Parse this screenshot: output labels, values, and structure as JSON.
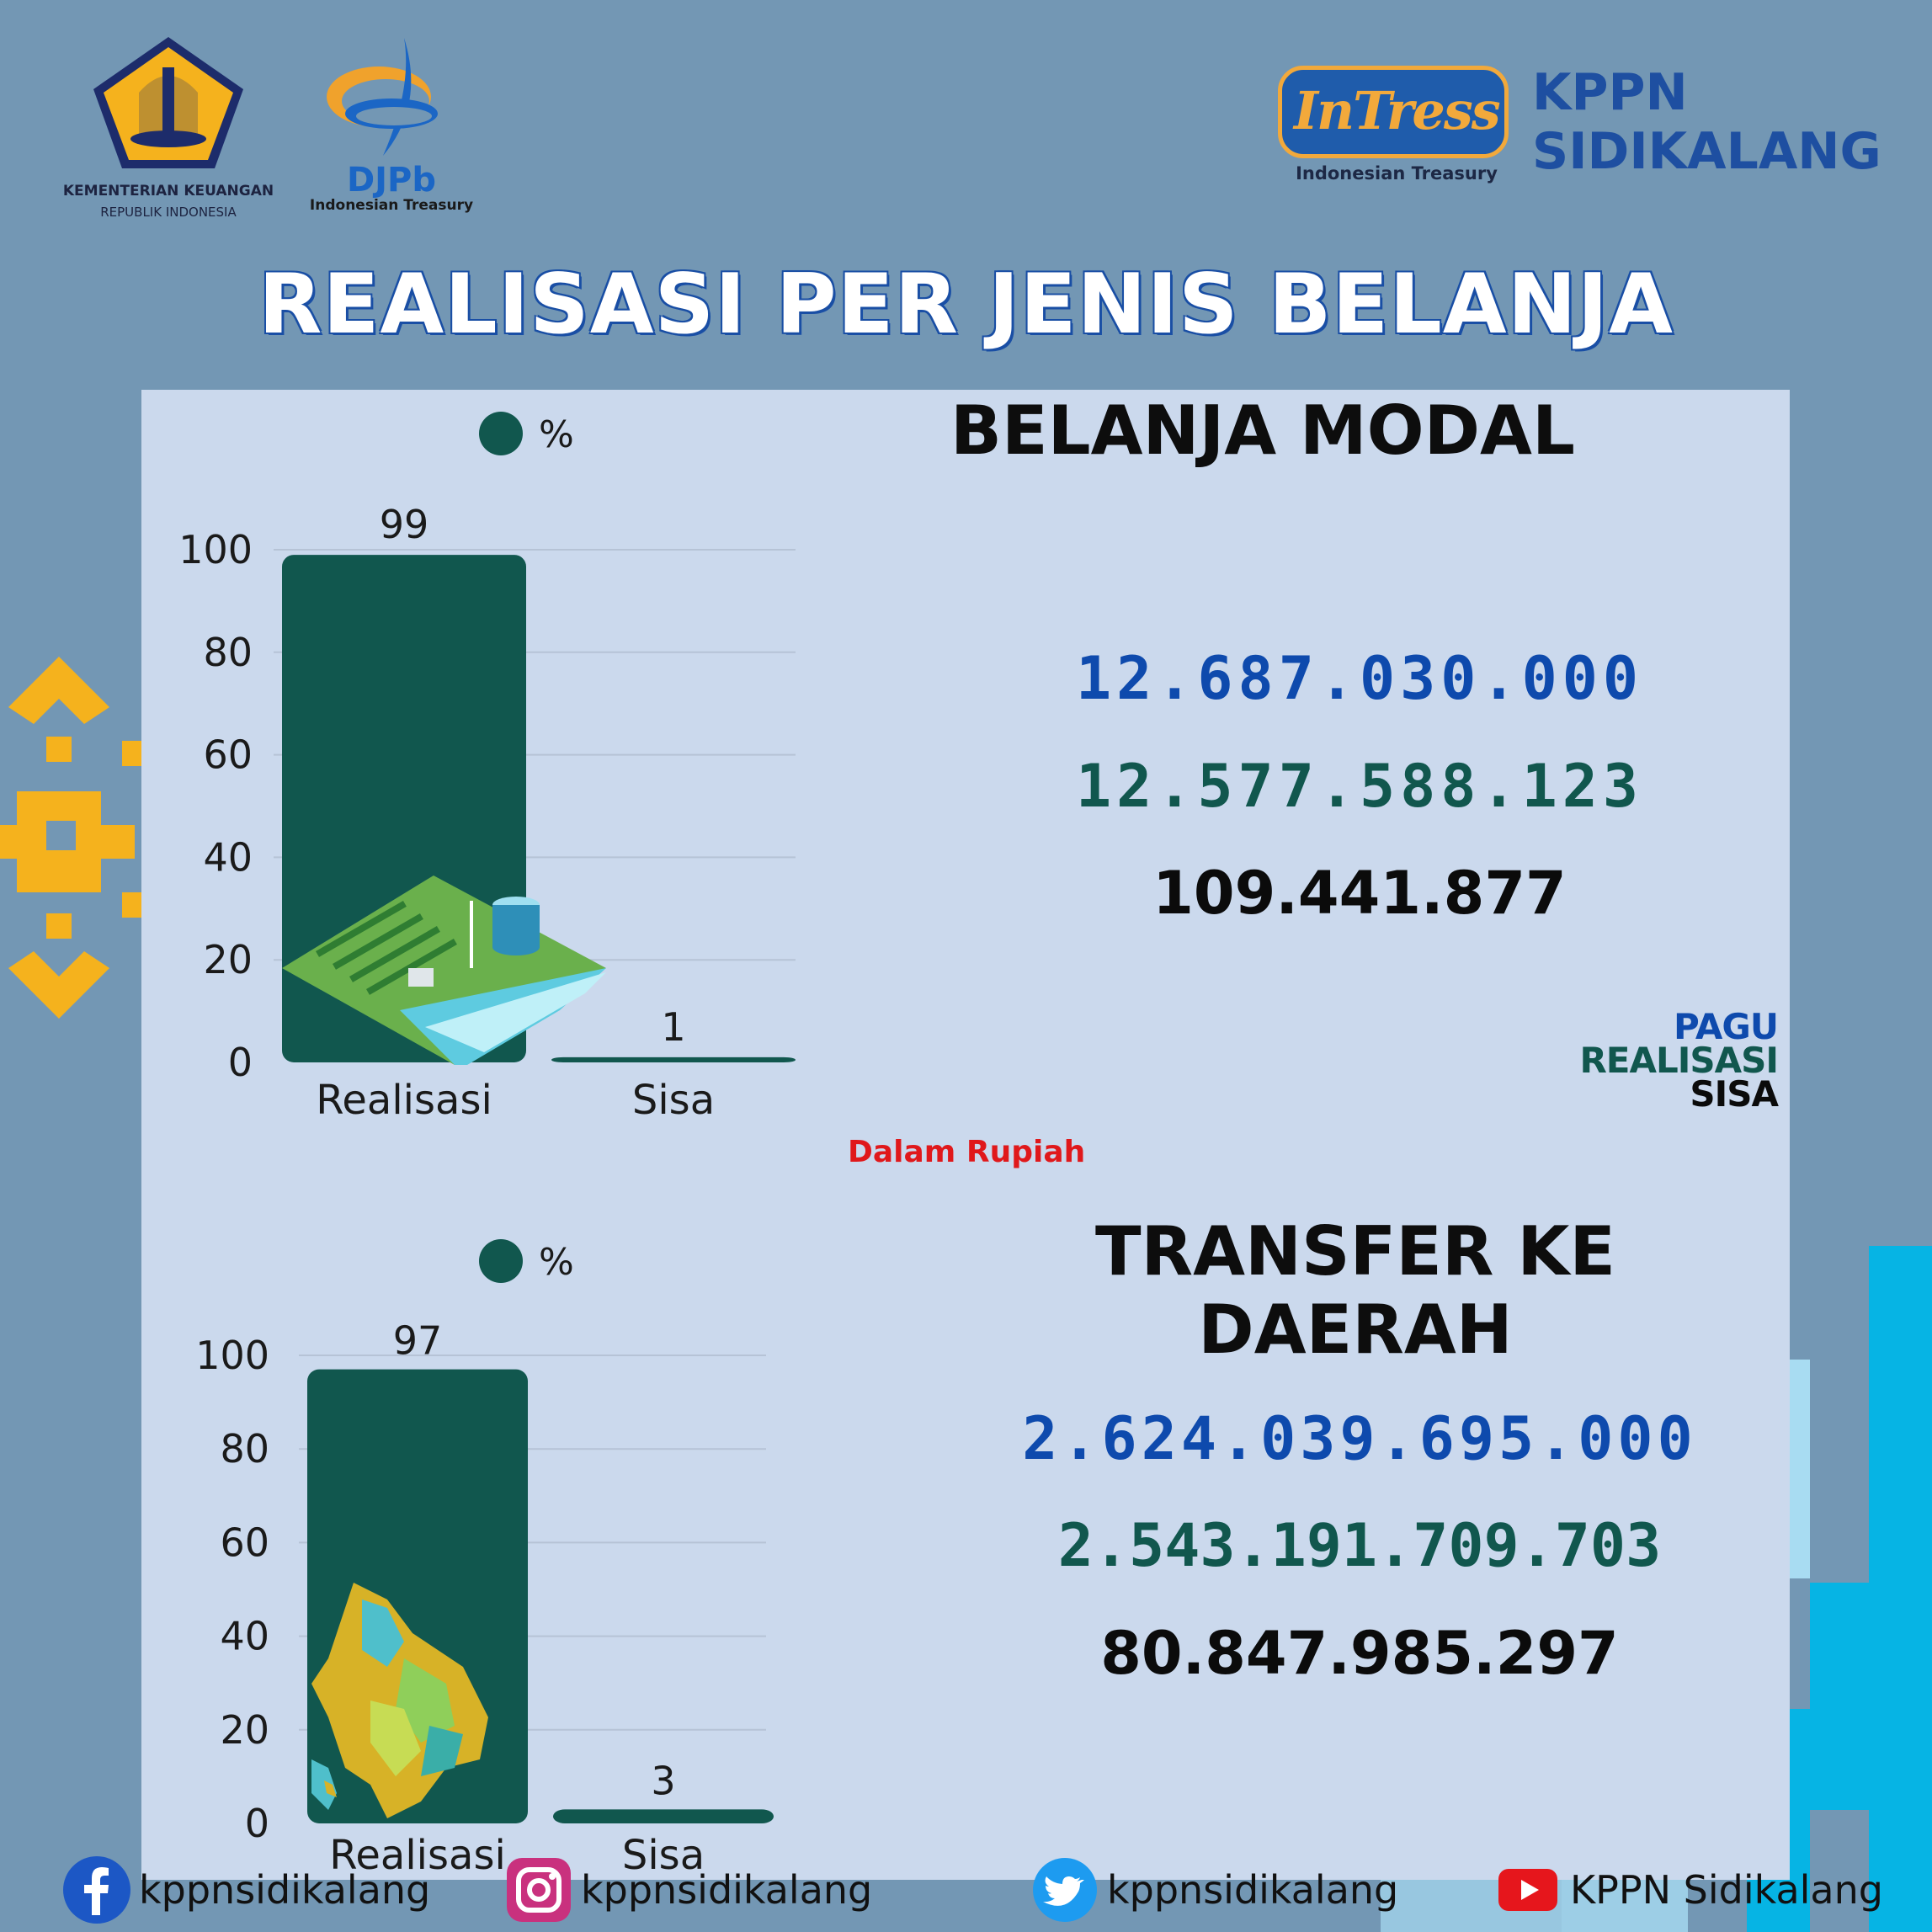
{
  "header": {
    "ministry_line1": "KEMENTERIAN KEUANGAN",
    "ministry_line2": "REPUBLIK INDONESIA",
    "djpb_name": "DJPb",
    "djpb_sub": "Indonesian Treasury",
    "intress_word": "InTress",
    "intress_sub": "Indonesian Treasury",
    "office_line1": "KPPN",
    "office_line2": "SIDIKALANG"
  },
  "title": "REALISASI PER JENIS BELANJA",
  "sections": [
    {
      "heading": "BELANJA MODAL",
      "pagu": "12.687.030.000",
      "realisasi": "12.577.588.123",
      "sisa": "109.441.877"
    },
    {
      "heading": "TRANSFER KE DAERAH",
      "pagu": "2.624.039.695.000",
      "realisasi": "2.543.191.709.703",
      "sisa": "80.847.985.297"
    }
  ],
  "key": {
    "pagu": "PAGU",
    "realisasi": "REALISASI",
    "sisa": "SISA"
  },
  "unit_note": "Dalam Rupiah",
  "chart_data": [
    {
      "type": "bar",
      "categories": [
        "Realisasi",
        "Sisa"
      ],
      "series": [
        {
          "name": "%",
          "values": [
            99,
            1
          ]
        }
      ],
      "yticks": [
        0,
        20,
        40,
        60,
        80,
        100
      ],
      "ylim": [
        0,
        100
      ],
      "grid": true,
      "legend": "top"
    },
    {
      "type": "bar",
      "categories": [
        "Realisasi",
        "Sisa"
      ],
      "series": [
        {
          "name": "%",
          "values": [
            97,
            3
          ]
        }
      ],
      "yticks": [
        0,
        20,
        40,
        60,
        80,
        100
      ],
      "ylim": [
        0,
        100
      ],
      "grid": true,
      "legend": "top"
    }
  ],
  "footer": {
    "facebook": "kppnsidikalang",
    "instagram": "kppnsidikalang",
    "twitter": "kppnsidikalang",
    "youtube": "KPPN Sidikalang"
  },
  "colors": {
    "background": "#7397b4",
    "panel": "#cbd9ed",
    "bar": "#11574e",
    "pagu": "#0e4aad",
    "realisasi": "#11574e",
    "sisa": "#0b0b0b",
    "note": "#e0181b"
  }
}
